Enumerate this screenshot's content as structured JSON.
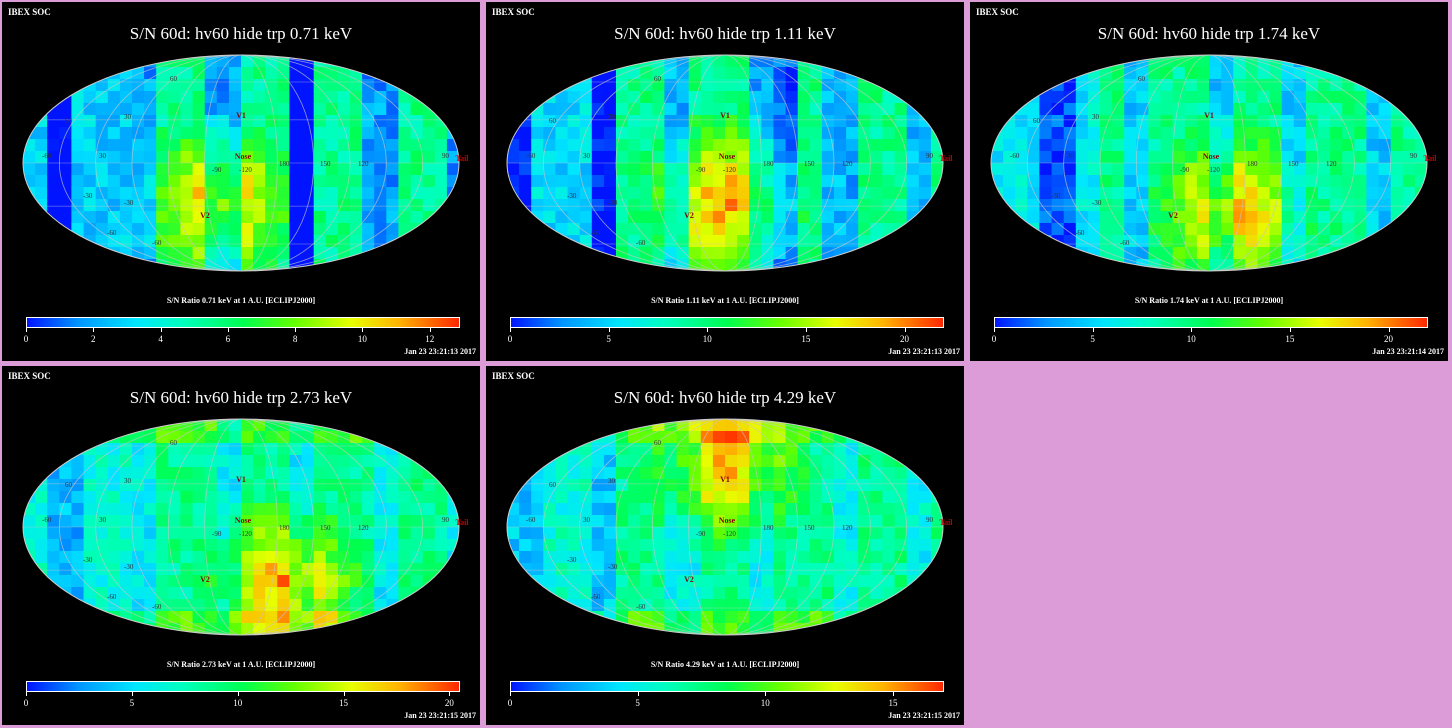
{
  "panels": [
    {
      "tag": "IBEX SOC",
      "title": "S/N  60d: hv60 hide trp 0.71 keV",
      "colorbar_title": "S/N Ratio 0.71 keV at 1 A.U. [ECLIPJ2000]",
      "ticks": [
        "0",
        "2",
        "4",
        "6",
        "8",
        "10",
        "12"
      ],
      "max": 12.9,
      "timestamp": "Jan 23 23:21:13 2017",
      "hot_lon": 0.45,
      "hot_lat": 0.68,
      "blue_strength": 1.0
    },
    {
      "tag": "IBEX SOC",
      "title": "S/N  60d: hv60 hide trp 1.11 keV",
      "colorbar_title": "S/N Ratio 1.11 keV at 1 A.U. [ECLIPJ2000]",
      "ticks": [
        "0",
        "5",
        "10",
        "15",
        "20"
      ],
      "max": 22,
      "timestamp": "Jan 23 23:21:13 2017",
      "hot_lon": 0.5,
      "hot_lat": 0.68,
      "blue_strength": 0.9
    },
    {
      "tag": "IBEX SOC",
      "title": "S/N  60d: hv60 hide trp 1.74 keV",
      "colorbar_title": "S/N Ratio 1.74 keV at 1 A.U. [ECLIPJ2000]",
      "ticks": [
        "0",
        "5",
        "10",
        "15",
        "20"
      ],
      "max": 22,
      "timestamp": "Jan 23 23:21:14 2017",
      "hot_lon": 0.55,
      "hot_lat": 0.72,
      "blue_strength": 0.75
    },
    {
      "tag": "IBEX SOC",
      "title": "S/N  60d: hv60 hide trp 2.73 keV",
      "colorbar_title": "S/N Ratio 2.73 keV at 1 A.U. [ECLIPJ2000]",
      "ticks": [
        "0",
        "5",
        "10",
        "15",
        "20"
      ],
      "max": 20.5,
      "timestamp": "Jan 23 23:21:15 2017",
      "hot_lon": 0.6,
      "hot_lat": 0.75,
      "blue_strength": 0.5
    },
    {
      "tag": "IBEX SOC",
      "title": "S/N  60d: hv60 hide trp 4.29 keV",
      "colorbar_title": "S/N Ratio 4.29 keV at 1 A.U. [ECLIPJ2000]",
      "ticks": [
        "0",
        "5",
        "10",
        "15"
      ],
      "max": 17,
      "timestamp": "Jan 23 23:21:15 2017",
      "hot_lon": 0.5,
      "hot_lat": 0.2,
      "blue_strength": 0.45
    }
  ],
  "map_labels": {
    "v1": "V1",
    "v2": "V2",
    "nose": "Nose",
    "tail": "Tail",
    "lat_lon": [
      "60",
      "30",
      "-30",
      "-60",
      "-90",
      "-120",
      "180",
      "150",
      "120",
      "90",
      "-60",
      "60",
      "30",
      "-30",
      "-60"
    ]
  }
}
